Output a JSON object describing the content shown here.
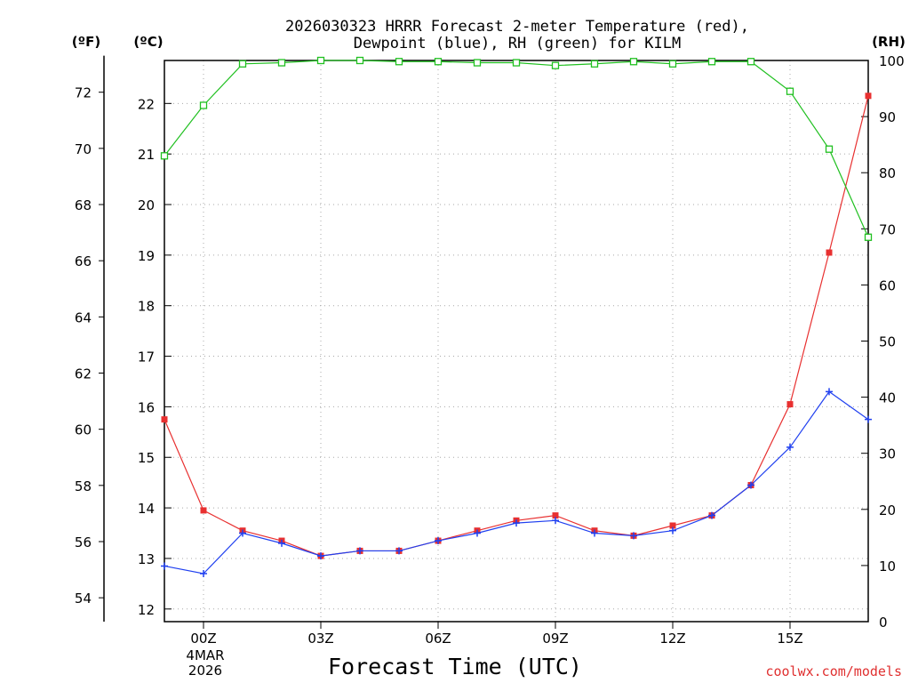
{
  "chart_data": {
    "type": "line",
    "title": "2026030323 HRRR Forecast 2-meter Temperature (red),",
    "subtitle": "Dewpoint (blue), RH (green) for KILM",
    "xlabel": "Forecast Time (UTC)",
    "credit": "coolwx.com/models",
    "units": {
      "fahrenheit": "(ºF)",
      "celsius": "(ºC)",
      "rh": "(RH)"
    },
    "date_label": [
      "4MAR",
      "2026"
    ],
    "x_hours": [
      -1,
      0,
      1,
      2,
      3,
      4,
      5,
      6,
      7,
      8,
      9,
      10,
      11,
      12,
      13,
      14,
      15,
      16,
      17
    ],
    "x_range": [
      -1,
      17
    ],
    "x_ticks": [
      {
        "hour": 0,
        "label": "00Z"
      },
      {
        "hour": 3,
        "label": "03Z"
      },
      {
        "hour": 6,
        "label": "06Z"
      },
      {
        "hour": 9,
        "label": "09Z"
      },
      {
        "hour": 12,
        "label": "12Z"
      },
      {
        "hour": 15,
        "label": "15Z"
      }
    ],
    "celsius_range": [
      11.75,
      22.85
    ],
    "celsius_ticks": [
      12,
      13,
      14,
      15,
      16,
      17,
      18,
      19,
      20,
      21,
      22
    ],
    "fahrenheit_ticks": [
      54,
      56,
      58,
      60,
      62,
      64,
      66,
      68,
      70,
      72
    ],
    "rh_range": [
      0,
      100
    ],
    "rh_ticks": [
      0,
      10,
      20,
      30,
      40,
      50,
      60,
      70,
      80,
      90,
      100
    ],
    "series": [
      {
        "name": "Temperature",
        "color": "#e83030",
        "marker": "filled-square",
        "axis": "celsius",
        "values": [
          15.75,
          13.95,
          13.55,
          13.35,
          13.05,
          13.15,
          13.15,
          13.35,
          13.55,
          13.75,
          13.85,
          13.55,
          13.45,
          13.65,
          13.85,
          14.45,
          16.05,
          19.05,
          22.15
        ]
      },
      {
        "name": "Dewpoint",
        "color": "#2040f0",
        "marker": "plus",
        "axis": "celsius",
        "values": [
          12.85,
          12.7,
          13.5,
          13.3,
          13.05,
          13.15,
          13.15,
          13.35,
          13.5,
          13.7,
          13.75,
          13.5,
          13.45,
          13.55,
          13.85,
          14.45,
          15.2,
          16.3,
          15.75
        ]
      },
      {
        "name": "RH",
        "color": "#20c020",
        "marker": "open-square",
        "axis": "rh",
        "values": [
          83,
          92,
          99.4,
          99.6,
          100,
          100,
          99.8,
          99.8,
          99.6,
          99.6,
          99.1,
          99.4,
          99.8,
          99.4,
          99.8,
          99.8,
          94.5,
          84.2,
          68.5
        ]
      }
    ]
  }
}
